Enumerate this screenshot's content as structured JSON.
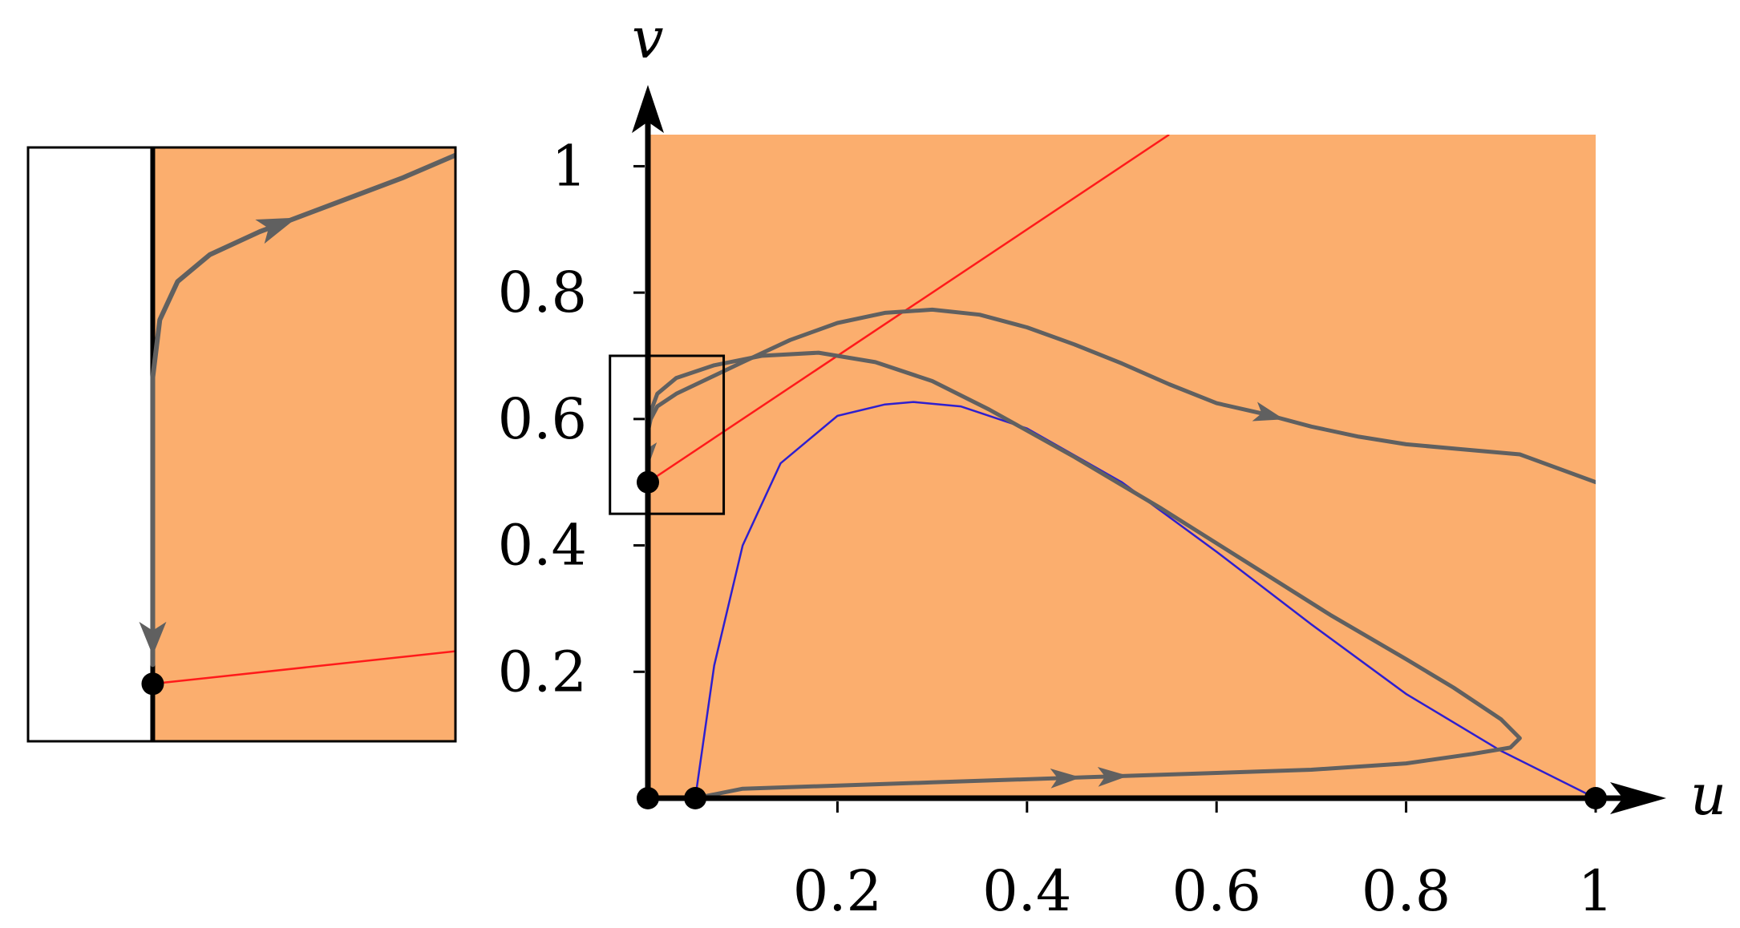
{
  "chart_data": {
    "type": "line",
    "title": "",
    "xlabel": "u",
    "ylabel": "v",
    "xlim": [
      0,
      1
    ],
    "ylim": [
      0,
      1.05
    ],
    "xticks": [
      "0.2",
      "0.4",
      "0.6",
      "0.8",
      "1"
    ],
    "yticks": [
      "0.2",
      "0.4",
      "0.6",
      "0.8",
      "1"
    ],
    "shaded_region_color": "#FBAE6E",
    "colors": {
      "trajectory": "#606060",
      "red_nullcline": "#FF1A1A",
      "blue_nullcline": "#2E1FCF",
      "axis": "#000000"
    },
    "series": [
      {
        "kind": "trajectory",
        "x": [
          0.0,
          0.0,
          0.003,
          0.01,
          0.03,
          0.1,
          0.15,
          0.2,
          0.25,
          0.3,
          0.35,
          0.4,
          0.45,
          0.5,
          0.55,
          0.6,
          0.65,
          0.7,
          0.75,
          0.8,
          0.86,
          0.92,
          1.0
        ],
        "y": [
          0.505,
          0.58,
          0.6,
          0.62,
          0.64,
          0.69,
          0.725,
          0.752,
          0.768,
          0.773,
          0.765,
          0.745,
          0.718,
          0.688,
          0.655,
          0.625,
          0.608,
          0.588,
          0.572,
          0.56,
          0.552,
          0.544,
          0.5
        ],
        "arrows_at_x": [
          0.655,
          0.0
        ]
      },
      {
        "kind": "trajectory",
        "x": [
          0.05,
          0.1,
          0.3,
          0.5,
          0.7,
          0.8,
          0.87,
          0.91,
          0.92,
          0.9,
          0.85,
          0.8,
          0.72,
          0.63,
          0.54,
          0.45,
          0.36,
          0.3,
          0.24,
          0.18,
          0.12,
          0.07,
          0.03,
          0.01,
          0.0,
          0.0
        ],
        "y": [
          0.0,
          0.015,
          0.025,
          0.035,
          0.045,
          0.055,
          0.07,
          0.08,
          0.095,
          0.125,
          0.175,
          0.22,
          0.29,
          0.375,
          0.46,
          0.54,
          0.615,
          0.66,
          0.69,
          0.705,
          0.7,
          0.685,
          0.665,
          0.64,
          0.6,
          0.505
        ],
        "arrows_at_x": [
          0.49,
          0.44,
          0.0
        ]
      },
      {
        "kind": "nullcline",
        "name": "",
        "color": "#FF1A1A",
        "x": [
          0.0,
          0.55
        ],
        "y": [
          0.5,
          1.05
        ]
      },
      {
        "kind": "nullcline",
        "name": "",
        "color": "#2E1FCF",
        "x": [
          0.05,
          0.07,
          0.1,
          0.14,
          0.2,
          0.25,
          0.28,
          0.33,
          0.4,
          0.5,
          0.6,
          0.7,
          0.8,
          0.9,
          1.0
        ],
        "y": [
          0.0,
          0.21,
          0.4,
          0.53,
          0.605,
          0.623,
          0.627,
          0.62,
          0.585,
          0.5,
          0.39,
          0.275,
          0.165,
          0.075,
          0.0
        ]
      }
    ],
    "equilibria": [
      {
        "u": 0.0,
        "v": 0.0
      },
      {
        "u": 0.05,
        "v": 0.0
      },
      {
        "u": 1.0,
        "v": 0.0
      },
      {
        "u": 0.0,
        "v": 0.5
      }
    ],
    "inset_window": {
      "u": [
        -0.04,
        0.08
      ],
      "v": [
        0.45,
        0.7
      ]
    },
    "inset": {
      "type": "line",
      "description_role": "zoom of boxed region near (0, 0.5)",
      "xlim": [
        -0.0035,
        0.0085
      ],
      "ylim": [
        0.485,
        0.64
      ]
    }
  }
}
